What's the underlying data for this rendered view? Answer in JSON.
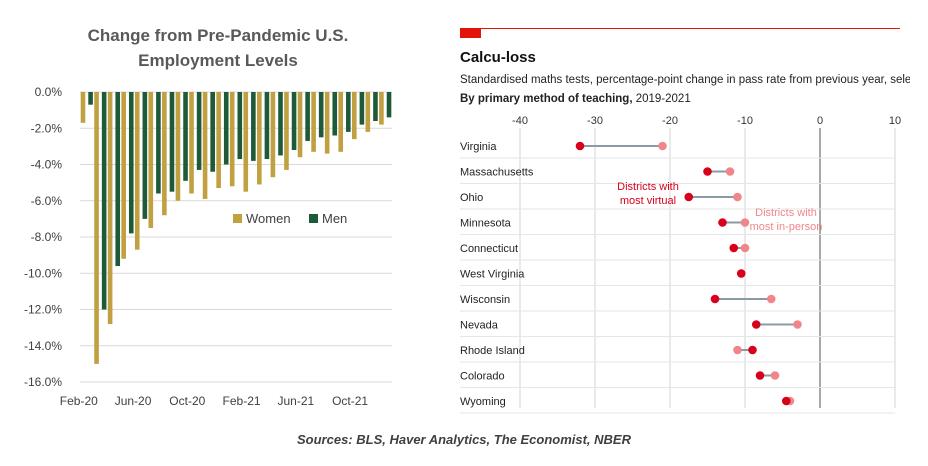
{
  "chart_data": [
    {
      "type": "bar",
      "title_lines": [
        "Change from Pre-Pandemic U.S.",
        "Employment Levels"
      ],
      "categories": [
        "Feb-20",
        "Mar-20",
        "Apr-20",
        "May-20",
        "Jun-20",
        "Jul-20",
        "Aug-20",
        "Sep-20",
        "Oct-20",
        "Nov-20",
        "Dec-20",
        "Jan-21",
        "Feb-21",
        "Mar-21",
        "Apr-21",
        "May-21",
        "Jun-21",
        "Jul-21",
        "Aug-21",
        "Sep-21",
        "Oct-21",
        "Nov-21",
        "Dec-21"
      ],
      "x_tick_labels": [
        "Feb-20",
        "Jun-20",
        "Oct-20",
        "Feb-21",
        "Jun-21",
        "Oct-21"
      ],
      "series": [
        {
          "name": "Women",
          "color": "#c0a040",
          "values": [
            -1.7,
            -15.0,
            -12.8,
            -9.2,
            -8.7,
            -7.5,
            -6.8,
            -6.0,
            -5.6,
            -5.9,
            -5.3,
            -5.2,
            -5.5,
            -5.1,
            -4.7,
            -4.3,
            -3.6,
            -3.3,
            -3.4,
            -3.3,
            -2.6,
            -2.2,
            -1.8
          ]
        },
        {
          "name": "Men",
          "color": "#1e5a3a",
          "values": [
            -0.7,
            -12.0,
            -9.6,
            -7.8,
            -7.0,
            -5.6,
            -5.5,
            -4.9,
            -4.3,
            -4.4,
            -4.0,
            -3.7,
            -3.8,
            -3.7,
            -3.5,
            -3.2,
            -2.7,
            -2.5,
            -2.4,
            -2.2,
            -1.8,
            -1.6,
            -1.4
          ]
        }
      ],
      "y_tick_labels": [
        "0.0%",
        "-2.0%",
        "-4.0%",
        "-6.0%",
        "-8.0%",
        "-10.0%",
        "-12.0%",
        "-14.0%",
        "-16.0%"
      ],
      "ylim": [
        -16,
        0
      ],
      "legend": [
        "Women",
        "Men"
      ]
    },
    {
      "type": "dumbbell",
      "title": "Calcu-loss",
      "subtitle": "Standardised maths tests, percentage-point change in pass rate from previous year, selected states",
      "subtitle2_bold": "By primary method of teaching,",
      "subtitle2_rest": " 2019-2021",
      "xlim": [
        -40,
        10
      ],
      "x_ticks": [
        "-40",
        "-30",
        "-20",
        "-10",
        "0",
        "10"
      ],
      "categories": [
        "Virginia",
        "Massachusetts",
        "Ohio",
        "Minnesota",
        "Connecticut",
        "West Virginia",
        "Wisconsin",
        "Nevada",
        "Rhode Island",
        "Colorado",
        "Wyoming"
      ],
      "series": [
        {
          "name": "Districts with most virtual",
          "color": "#d8001a",
          "values": [
            -32,
            -15,
            -17.5,
            -13,
            -11.5,
            -10.5,
            -14,
            -8.5,
            -9,
            -8,
            -4.5
          ]
        },
        {
          "name": "Districts with most in-person",
          "color": "#f0868b",
          "values": [
            -21,
            -12,
            -11,
            -10,
            -10,
            -10.5,
            -6.5,
            -3,
            -11,
            -6,
            -4
          ]
        }
      ],
      "annotation_virtual": [
        "Districts with",
        "most virtual"
      ],
      "annotation_inperson": [
        "Districts with",
        "most in-person"
      ]
    }
  ],
  "colors": {
    "women": "#c0a040",
    "men": "#1e5a3a",
    "virtual": "#d8001a",
    "inperson": "#f0868b",
    "connector": "#8a9ba5",
    "economist_red": "#e3120b"
  },
  "sources": "Sources: BLS, Haver Analytics, The Economist, NBER"
}
